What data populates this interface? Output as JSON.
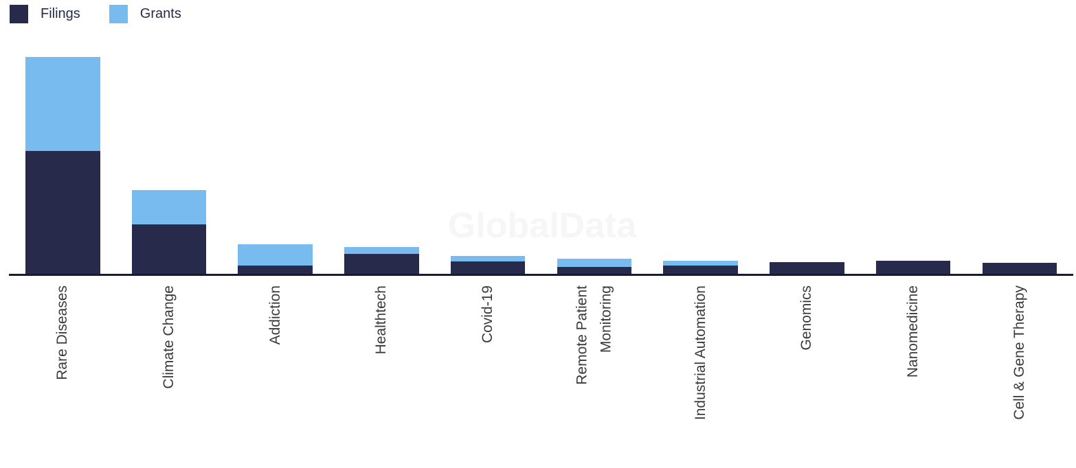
{
  "watermark": "GlobalData",
  "legend": {
    "items": [
      {
        "label": "Filings",
        "color": "#272a4b"
      },
      {
        "label": "Grants",
        "color": "#78bbef"
      }
    ]
  },
  "colors": {
    "filings": "#272a4b",
    "grants": "#78bbef",
    "axis_line": "#171b33",
    "axis_label_text": "#3a3a3a",
    "watermark_text": "#f6f6f6",
    "background": "#ffffff"
  },
  "chart_data": {
    "type": "bar",
    "stacked": true,
    "title": "",
    "xlabel": "",
    "ylabel": "",
    "grid": false,
    "y_axis_visible": false,
    "legend_position": "top-left",
    "x_label_rotation_deg": 90,
    "value_unit": "relative (no y-axis scale shown; values estimated from bar heights in px)",
    "ylim": [
      0,
      330
    ],
    "categories": [
      "Rare Diseases",
      "Climate Change",
      "Addiction",
      "Healthtech",
      "Covid-19",
      "Remote Patient Monitoring",
      "Industrial Automation",
      "Genomics",
      "Nanomedicine",
      "Cell & Gene Therapy"
    ],
    "category_display_lines": [
      [
        "Rare Diseases"
      ],
      [
        "Climate Change"
      ],
      [
        "Addiction"
      ],
      [
        "Healthtech"
      ],
      [
        "Covid-19"
      ],
      [
        "Remote Patient",
        "Monitoring"
      ],
      [
        "Industrial Automation"
      ],
      [
        "Genomics"
      ],
      [
        "Nanomedicine"
      ],
      [
        "Cell & Gene Therapy"
      ]
    ],
    "series": [
      {
        "name": "Filings",
        "color": "#272a4b",
        "values": [
          179,
          72,
          12,
          29,
          18,
          10,
          12,
          17,
          19,
          16
        ]
      },
      {
        "name": "Grants",
        "color": "#78bbef",
        "values": [
          137,
          50,
          31,
          10,
          8,
          12,
          7,
          0,
          0,
          0
        ]
      }
    ],
    "totals": [
      316,
      122,
      43,
      39,
      26,
      22,
      19,
      17,
      19,
      16
    ]
  }
}
